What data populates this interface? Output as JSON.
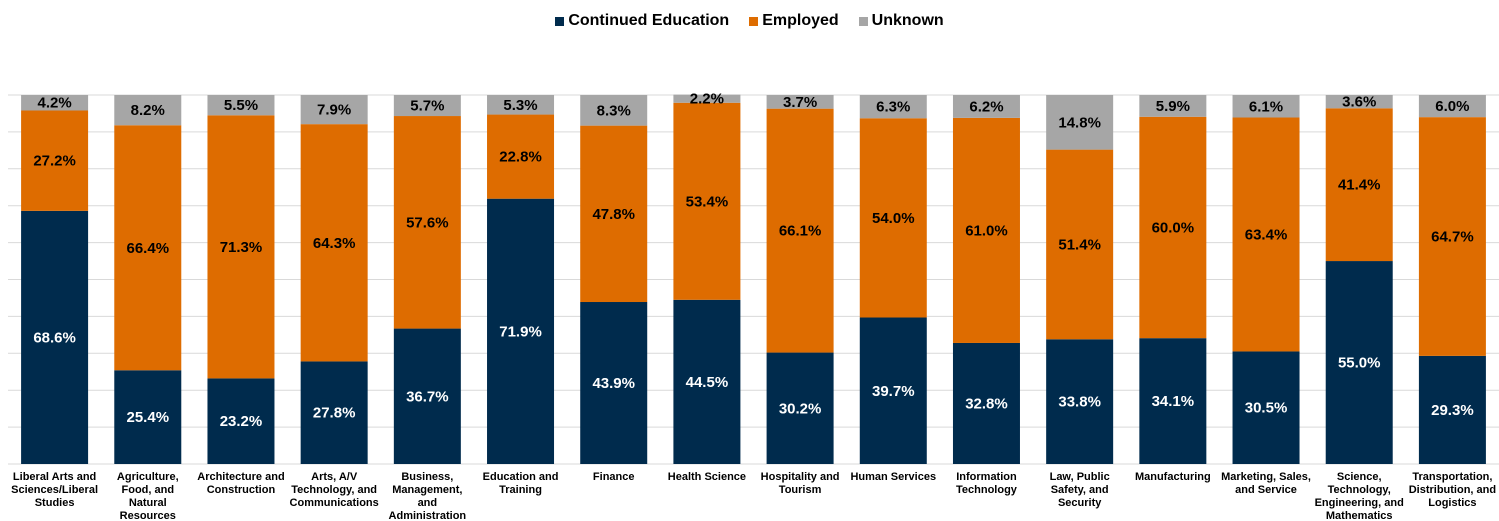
{
  "chart_data": {
    "type": "bar",
    "stacked": true,
    "categories": [
      "Liberal Arts and Sciences/Liberal Studies",
      "Agriculture, Food, and Natural Resources",
      "Architecture and Construction",
      "Arts, A/V Technology, and Communications",
      "Business, Management, and Administration",
      "Education and Training",
      "Finance",
      "Health Science",
      "Hospitality and Tourism",
      "Human Services",
      "Information Technology",
      "Law, Public Safety, and Security",
      "Manufacturing",
      "Marketing, Sales, and Service",
      "Science, Technology, Engineering, and Mathematics",
      "Transportation, Distribution, and Logistics"
    ],
    "category_lines": [
      [
        "Liberal Arts and",
        "Sciences/Liberal",
        "Studies"
      ],
      [
        "Agriculture,",
        "Food, and",
        "Natural",
        "Resources"
      ],
      [
        "Architecture and",
        "Construction"
      ],
      [
        "Arts, A/V",
        "Technology, and",
        "Communications"
      ],
      [
        "Business,",
        "Management,",
        "and",
        "Administration"
      ],
      [
        "Education and",
        "Training"
      ],
      [
        "Finance"
      ],
      [
        "Health Science"
      ],
      [
        "Hospitality and",
        "Tourism"
      ],
      [
        "Human Services"
      ],
      [
        "Information",
        "Technology"
      ],
      [
        "Law, Public",
        "Safety, and",
        "Security"
      ],
      [
        "Manufacturing"
      ],
      [
        "Marketing, Sales,",
        "and Service"
      ],
      [
        "Science,",
        "Technology,",
        "Engineering, and",
        "Mathematics"
      ],
      [
        "Transportation,",
        "Distribution, and",
        "Logistics"
      ]
    ],
    "series": [
      {
        "name": "Continued Education",
        "color": "#002b4d",
        "label_color": "#ffffff",
        "values": [
          68.6,
          25.4,
          23.2,
          27.8,
          36.7,
          71.9,
          43.9,
          44.5,
          30.2,
          39.7,
          32.8,
          33.8,
          34.1,
          30.5,
          55.0,
          29.3
        ]
      },
      {
        "name": "Employed",
        "color": "#de6c00",
        "label_color": "#000000",
        "values": [
          27.2,
          66.4,
          71.3,
          64.3,
          57.6,
          22.8,
          47.8,
          53.4,
          66.1,
          54.0,
          61.0,
          51.4,
          60.0,
          63.4,
          41.4,
          64.7
        ]
      },
      {
        "name": "Unknown",
        "color": "#a6a6a6",
        "label_color": "#000000",
        "values": [
          4.2,
          8.2,
          5.5,
          7.9,
          5.7,
          5.3,
          8.3,
          2.2,
          3.7,
          6.3,
          6.2,
          14.8,
          5.9,
          6.1,
          3.6,
          6.0
        ]
      }
    ],
    "ylim": [
      0,
      100
    ],
    "grid": true,
    "legend_position": "top-center",
    "value_format": "percent-1dp"
  }
}
